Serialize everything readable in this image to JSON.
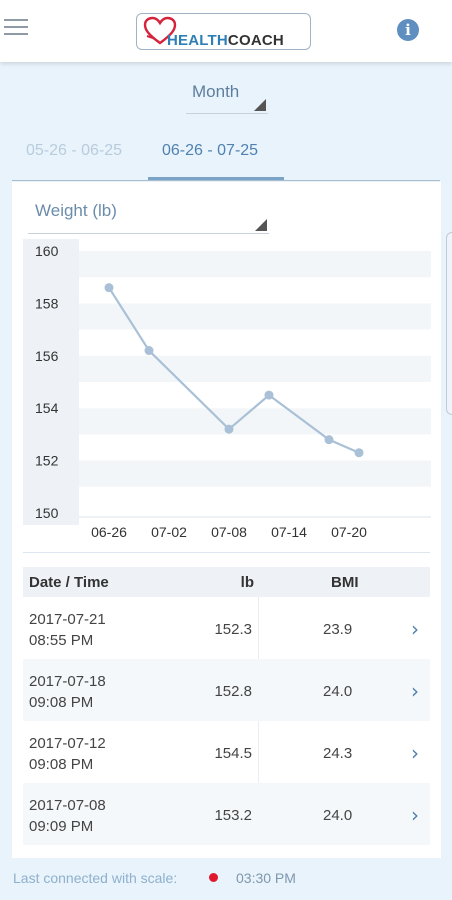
{
  "header": {
    "logo_health": "HEALTH",
    "logo_coach": "COACH",
    "menu_icon": "menu-icon",
    "info_icon": "info-icon",
    "info_glyph": "i"
  },
  "period": {
    "selected": "Month"
  },
  "tabs": [
    {
      "label": "05-26 - 06-25",
      "active": false
    },
    {
      "label": "06-26 - 07-25",
      "active": true
    }
  ],
  "metric": {
    "selected": "Weight (lb)"
  },
  "chart_data": {
    "type": "line",
    "x": [
      "06-26",
      "06-30",
      "07-08",
      "07-12",
      "07-18",
      "07-21"
    ],
    "values": [
      158.6,
      156.2,
      153.2,
      154.5,
      152.8,
      152.3
    ],
    "xticks": [
      "06-26",
      "07-02",
      "07-08",
      "07-14",
      "07-20"
    ],
    "yticks": [
      "160",
      "158",
      "156",
      "154",
      "152",
      "150"
    ],
    "ylim": [
      150,
      160
    ],
    "grid": true,
    "line_color": "#a9c0d6"
  },
  "table": {
    "headers": {
      "date": "Date / Time",
      "lb": "lb",
      "bmi": "BMI"
    },
    "rows": [
      {
        "date": "2017-07-21",
        "time": "08:55 PM",
        "lb": "152.3",
        "bmi": "23.9"
      },
      {
        "date": "2017-07-18",
        "time": "09:08 PM",
        "lb": "152.8",
        "bmi": "24.0"
      },
      {
        "date": "2017-07-12",
        "time": "09:08 PM",
        "lb": "154.5",
        "bmi": "24.3"
      },
      {
        "date": "2017-07-08",
        "time": "09:09 PM",
        "lb": "153.2",
        "bmi": "24.0"
      }
    ]
  },
  "footer": {
    "label": "Last connected with scale:",
    "status_color": "#e0182d",
    "time": "03:30 PM"
  },
  "colors": {
    "accent": "#4f82b2",
    "background": "#e9f3fb"
  }
}
